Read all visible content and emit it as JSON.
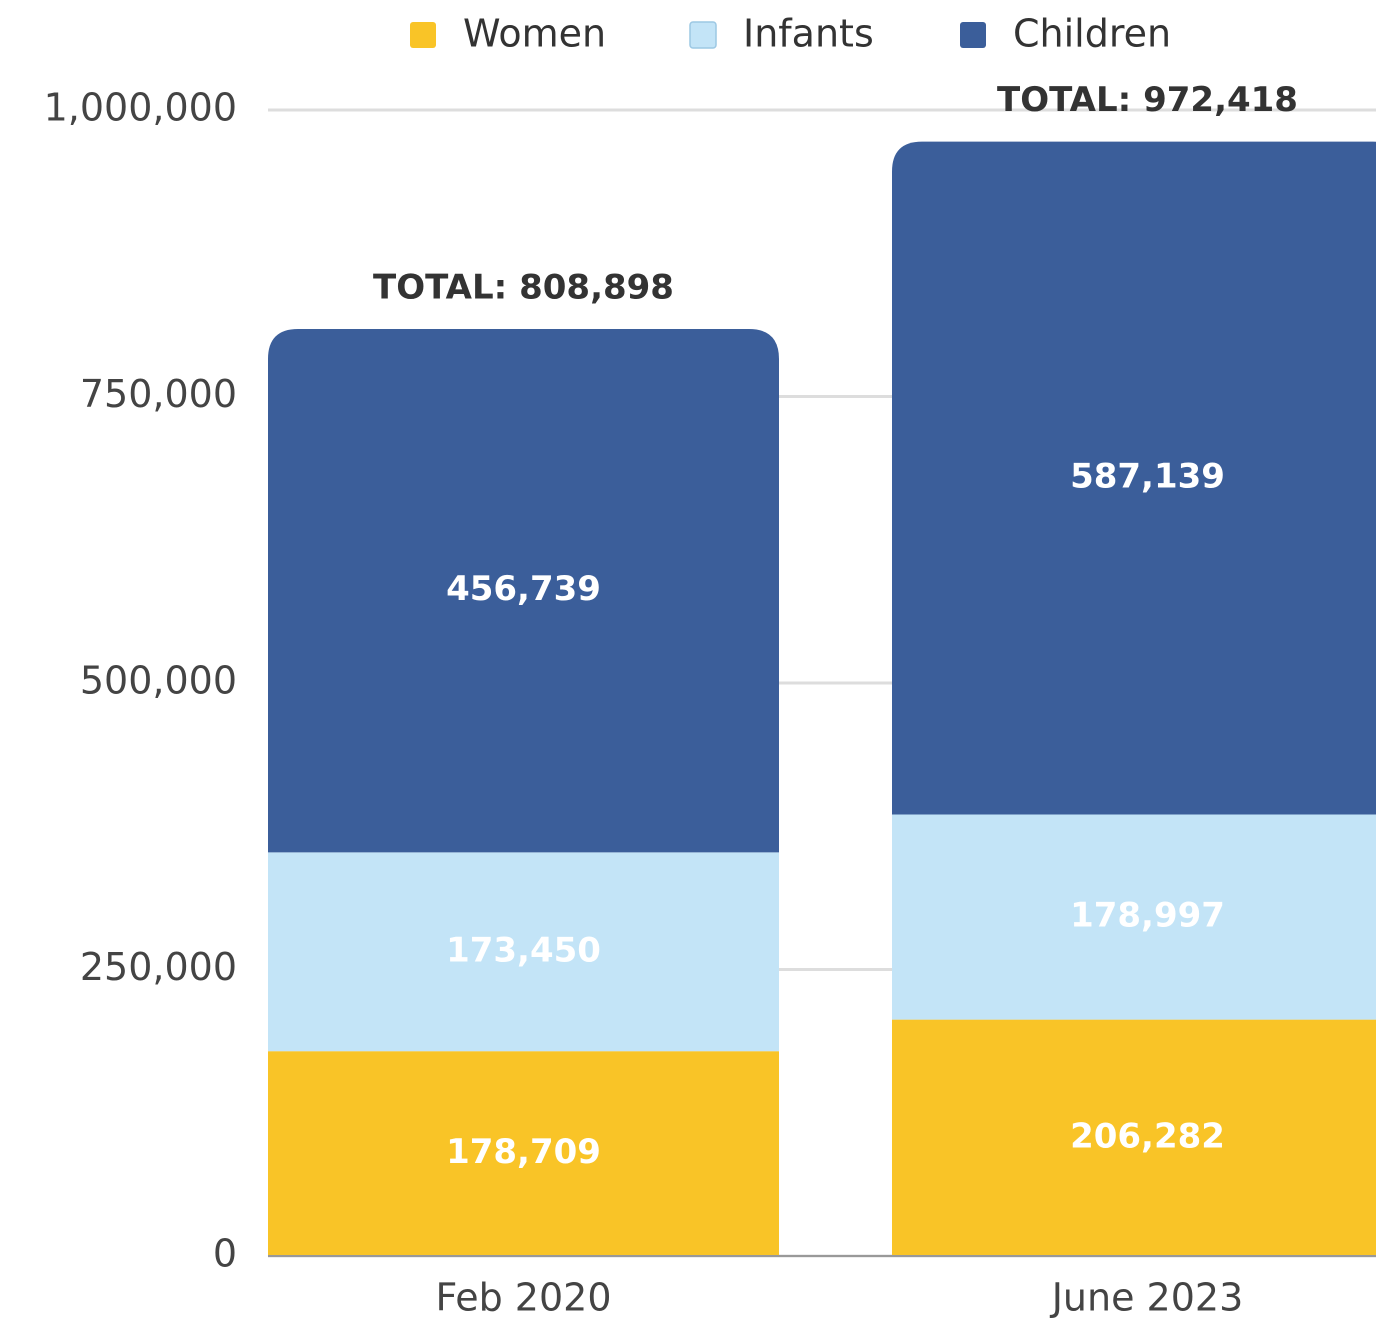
{
  "chart_data": {
    "type": "stacked_bar",
    "categories": [
      "Feb 2020",
      "June 2023"
    ],
    "series": [
      {
        "name": "Women",
        "color": "#f9c427",
        "values": [
          178709,
          206282
        ],
        "value_labels": [
          "178,709",
          "206,282"
        ]
      },
      {
        "name": "Infants",
        "color": "#c3e4f7",
        "values": [
          173450,
          178997
        ],
        "value_labels": [
          "173,450",
          "178,997"
        ]
      },
      {
        "name": "Children",
        "color": "#3b5e9a",
        "values": [
          456739,
          587139
        ],
        "value_labels": [
          "456,739",
          "587,139"
        ]
      }
    ],
    "totals": [
      808898,
      972418
    ],
    "total_labels": [
      "TOTAL: 808,898",
      "TOTAL: 972,418"
    ],
    "ylim": [
      0,
      1000000
    ],
    "yticks": [
      0,
      {
        "value": 250000,
        "label": "250,000"
      },
      {
        "value": 500000,
        "label": "500,000"
      },
      {
        "value": 750000,
        "label": "750,000"
      },
      {
        "value": 1000000,
        "label": "1,000,000"
      }
    ],
    "grid": true,
    "legend": "top"
  }
}
